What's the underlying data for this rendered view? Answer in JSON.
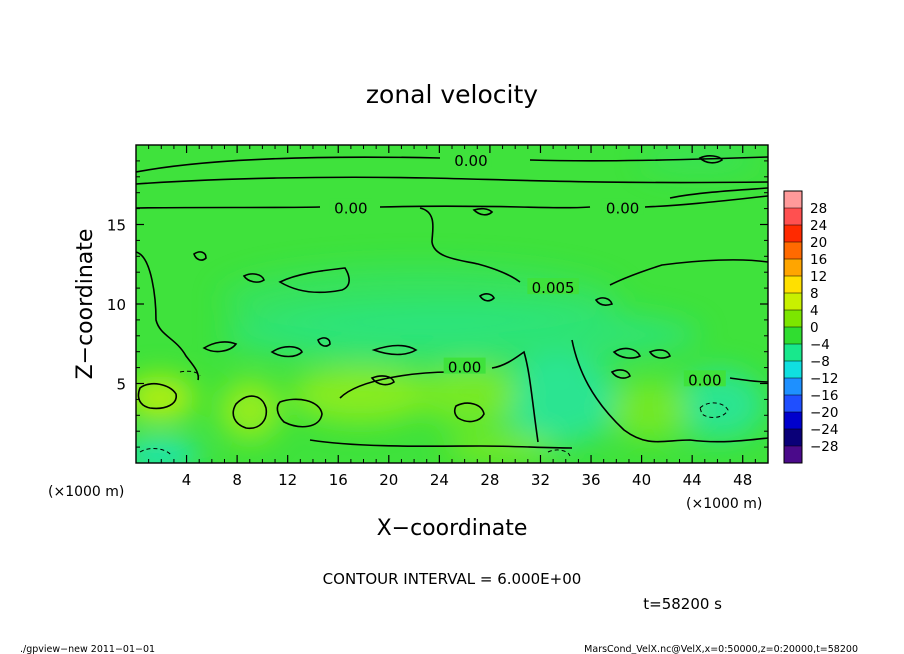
{
  "chart_data": {
    "type": "heatmap",
    "title": "zonal velocity",
    "xlabel": "X−coordinate",
    "ylabel": "Z−coordinate",
    "x_unit": "(×1000 m)",
    "y_unit": "(×1000 m)",
    "xlim": [
      0,
      50
    ],
    "ylim": [
      0,
      20
    ],
    "x_ticks": [
      4,
      8,
      12,
      16,
      20,
      24,
      28,
      32,
      36,
      40,
      44,
      48
    ],
    "y_ticks": [
      5,
      10,
      15
    ],
    "contour_interval_text": "CONTOUR INTERVAL = 6.000E+00",
    "time_text": "t=58200 s",
    "contour_labels": [
      {
        "text": "0.00",
        "x": 26.5,
        "z": 19.0
      },
      {
        "text": "0.00",
        "x": 17.0,
        "z": 16.0
      },
      {
        "text": "0.00",
        "x": 38.5,
        "z": 16.0
      },
      {
        "text": "0.005",
        "x": 33.0,
        "z": 11.0
      },
      {
        "text": "0.00",
        "x": 26.0,
        "z": 6.0
      },
      {
        "text": "0.00",
        "x": 45.0,
        "z": 5.2
      }
    ],
    "colorbar": {
      "levels": [
        "28",
        "24",
        "20",
        "16",
        "12",
        "8",
        "4",
        "0",
        "−4",
        "−8",
        "−12",
        "−16",
        "−20",
        "−24",
        "−28"
      ],
      "colors": [
        "#ff9a9a",
        "#ff5050",
        "#ff2a00",
        "#ff6a00",
        "#ffa500",
        "#ffe000",
        "#c8f000",
        "#7ce600",
        "#30dd30",
        "#18e88c",
        "#10e0e0",
        "#1e90ff",
        "#1f4fff",
        "#0000cc",
        "#0a0078",
        "#4a0a8a"
      ]
    }
  },
  "footer": {
    "left": "./gpview−new   2011−01−01",
    "right": "MarsCond_VelX.nc@VelX,x=0:50000,z=0:20000,t=58200"
  }
}
